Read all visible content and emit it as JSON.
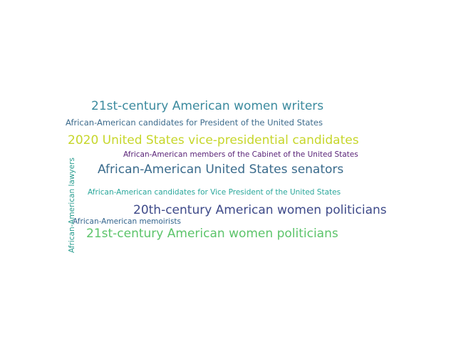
{
  "words": [
    {
      "text": "21st-century American women writers",
      "color": "#3b8a9e"
    },
    {
      "text": "African-American candidates for President of the United States",
      "color": "#3d6b8c"
    },
    {
      "text": "2020 United States vice-presidential candidates",
      "color": "#c6d62a"
    },
    {
      "text": "African-American members of the Cabinet of the United States",
      "color": "#5a2478"
    },
    {
      "text": "African-American United States senators",
      "color": "#3a6b8c"
    },
    {
      "text": "African-American candidates for Vice President of the United States",
      "color": "#2aa79b"
    },
    {
      "text": "20th-century American women politicians",
      "color": "#3e4a89"
    },
    {
      "text": "African-American memoirists",
      "color": "#33648d"
    },
    {
      "text": "21st-century American women politicians",
      "color": "#5cc46a"
    },
    {
      "text": "African-American lawyers",
      "color": "#2a9c8f"
    }
  ]
}
